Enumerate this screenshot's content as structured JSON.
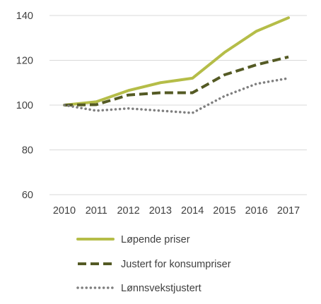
{
  "chart_data": {
    "type": "line",
    "title": "",
    "xlabel": "",
    "ylabel": "",
    "categories": [
      "2010",
      "2011",
      "2012",
      "2013",
      "2014",
      "2015",
      "2016",
      "2017"
    ],
    "ylim": [
      60,
      140
    ],
    "yticks": [
      60,
      80,
      100,
      120,
      140
    ],
    "grid": true,
    "legend_position": "bottom",
    "series": [
      {
        "name": "Løpende priser",
        "color": "#b5bd48",
        "style": "solid",
        "values": [
          100,
          101.5,
          106.5,
          110,
          112,
          123.5,
          133,
          139
        ]
      },
      {
        "name": "Justert for konsumpriser",
        "color": "#545a24",
        "style": "dashed",
        "values": [
          100,
          100.2,
          104.5,
          105.5,
          105.5,
          113.5,
          118,
          121.5
        ]
      },
      {
        "name": "Lønnsvekstjustert",
        "color": "#7f7f7f",
        "style": "dotted",
        "values": [
          100,
          97.5,
          98.5,
          97.5,
          96.5,
          104,
          109.5,
          112
        ]
      }
    ]
  }
}
